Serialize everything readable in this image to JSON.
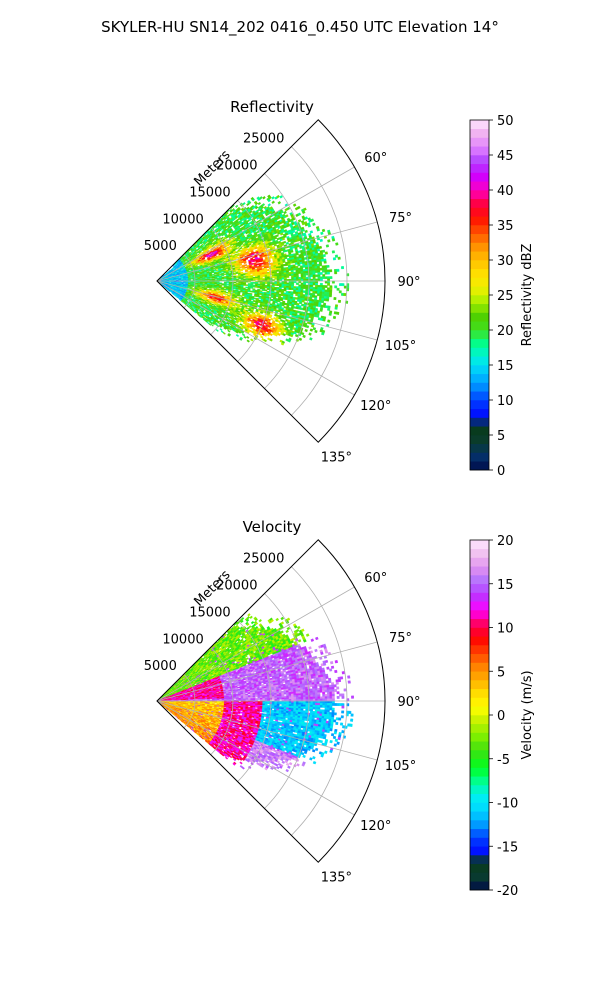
{
  "suptitle": "SKYLER-HU  SN14_202  0416_0.450 UTC Elevation 14°",
  "colors": {
    "grid": "#b0b0b0",
    "axis": "#000000",
    "background": "#ffffff"
  },
  "chart_data": [
    {
      "type": "heatmap",
      "subtype": "polar-sector (PPI)",
      "title": "Reflectivity",
      "radial_axis_label": "Meters",
      "radial_ticks": [
        5000,
        10000,
        15000,
        20000,
        25000
      ],
      "radial_tick_labels": [
        "5000",
        "10000",
        "15000",
        "20000",
        "25000"
      ],
      "radial_max": 30000,
      "theta_range_deg": [
        45,
        135
      ],
      "theta_ticks_deg": [
        60,
        75,
        90,
        105,
        120,
        135
      ],
      "theta_tick_labels": [
        "60°",
        "75°",
        "90°",
        "105°",
        "120°",
        "135°"
      ],
      "grid": true,
      "colorbar": {
        "label": "Reflectivity dBZ",
        "min": 0,
        "max": 50,
        "ticks": [
          0,
          5,
          10,
          15,
          20,
          25,
          30,
          35,
          40,
          45,
          50
        ],
        "tick_labels": [
          "0",
          "5",
          "10",
          "15",
          "20",
          "25",
          "30",
          "35",
          "40",
          "45",
          "50"
        ]
      },
      "field_summary": {
        "background_values_dbz": [
          15,
          22
        ],
        "cells": [
          {
            "theta_deg": 64,
            "range_m": 8000,
            "value_dbz": 40
          },
          {
            "theta_deg": 76,
            "range_m": 13000,
            "value_dbz": 36
          },
          {
            "theta_deg": 83,
            "range_m": 13500,
            "value_dbz": 30
          },
          {
            "theta_deg": 106,
            "range_m": 8000,
            "value_dbz": 36
          },
          {
            "theta_deg": 113,
            "range_m": 15000,
            "value_dbz": 38
          }
        ]
      }
    },
    {
      "type": "heatmap",
      "subtype": "polar-sector (PPI)",
      "title": "Velocity",
      "radial_axis_label": "Meters",
      "radial_ticks": [
        5000,
        10000,
        15000,
        20000,
        25000
      ],
      "radial_tick_labels": [
        "5000",
        "10000",
        "15000",
        "20000",
        "25000"
      ],
      "radial_max": 30000,
      "theta_range_deg": [
        45,
        135
      ],
      "theta_ticks_deg": [
        60,
        75,
        90,
        105,
        120,
        135
      ],
      "theta_tick_labels": [
        "60°",
        "75°",
        "90°",
        "105°",
        "120°",
        "135°"
      ],
      "grid": true,
      "colorbar": {
        "label": "Velocity (m/s)",
        "min": -20,
        "max": 20,
        "ticks": [
          -20,
          -15,
          -10,
          -5,
          0,
          5,
          10,
          15,
          20
        ],
        "tick_labels": [
          "-20",
          "-15",
          "-10",
          "-5",
          "0",
          "5",
          "10",
          "15",
          "20"
        ]
      },
      "field_summary": {
        "regions": [
          {
            "theta_deg_range": [
              50,
              70
            ],
            "range_m": [
              3000,
              15000
            ],
            "value_ms": -3
          },
          {
            "theta_deg_range": [
              72,
              88
            ],
            "range_m": [
              8000,
              16000
            ],
            "value_ms": 16
          },
          {
            "theta_deg_range": [
              90,
              112
            ],
            "range_m": [
              2000,
              9000
            ],
            "value_ms": 4
          },
          {
            "theta_deg_range": [
              92,
              118
            ],
            "range_m": [
              9000,
              14000
            ],
            "value_ms": 12
          },
          {
            "theta_deg_range": [
              88,
              112
            ],
            "range_m": [
              15000,
              24000
            ],
            "value_ms": -11
          },
          {
            "theta_deg_range": [
              114,
              125
            ],
            "range_m": [
              14000,
              20000
            ],
            "value_ms": 16
          }
        ]
      }
    }
  ]
}
